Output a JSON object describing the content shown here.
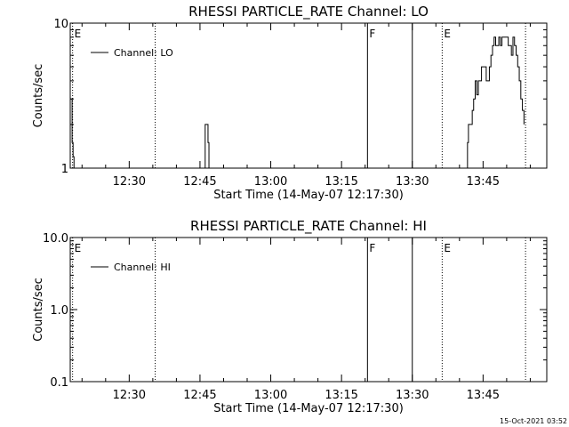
{
  "chart_data": [
    {
      "type": "line",
      "title": "RHESSI PARTICLE_RATE Channel: LO",
      "xlabel": "Start Time (14-May-07 12:17:30)",
      "ylabel": "Counts/sec",
      "yscale": "log",
      "ylim": [
        1,
        10
      ],
      "ytick_labels": [
        "1",
        "10"
      ],
      "xlim": [
        "12:17:30",
        "13:58:30"
      ],
      "xtick_labels": [
        "12:30",
        "12:45",
        "13:00",
        "13:15",
        "13:30",
        "13:45"
      ],
      "legend": {
        "label": "Channel: LO",
        "placement": "top-left"
      },
      "markers": [
        {
          "time": "12:18:00",
          "label": "E",
          "style": "dotted"
        },
        {
          "time": "12:35:30",
          "label": "",
          "style": "dotted"
        },
        {
          "time": "13:20:30",
          "label": "F",
          "style": "solid"
        },
        {
          "time": "13:30:00",
          "label": "",
          "style": "solid"
        },
        {
          "time": "13:36:20",
          "label": "E",
          "style": "dotted"
        },
        {
          "time": "13:54:00",
          "label": "",
          "style": "dotted"
        }
      ],
      "series": [
        {
          "name": "Channel: LO",
          "segments": [
            {
              "x": [
                "12:17:30",
                "12:17:42",
                "12:17:54",
                "12:18:06",
                "12:18:18"
              ],
              "y": [
                3,
                3,
                1.5,
                1.2,
                1
              ]
            },
            {
              "x": [
                "12:45:54",
                "12:46:06",
                "12:46:18",
                "12:46:30",
                "12:46:42",
                "12:46:54"
              ],
              "y": [
                1,
                2,
                2,
                2,
                1.5,
                1
              ]
            },
            {
              "x": [
                "13:41:30",
                "13:41:42",
                "13:41:54",
                "13:42:06",
                "13:42:18",
                "13:42:30",
                "13:42:42",
                "13:43:00",
                "13:43:20",
                "13:43:40",
                "13:44:00",
                "13:44:20",
                "13:44:40",
                "13:45:00",
                "13:45:20",
                "13:45:40",
                "13:46:00",
                "13:46:20",
                "13:46:40",
                "13:47:00",
                "13:47:20",
                "13:47:40",
                "13:48:00",
                "13:48:20",
                "13:48:40",
                "13:49:00",
                "13:49:20",
                "13:49:40",
                "13:50:00",
                "13:50:20",
                "13:50:40",
                "13:51:00",
                "13:51:20",
                "13:51:40",
                "13:52:00",
                "13:52:20",
                "13:52:40",
                "13:53:00",
                "13:53:20",
                "13:53:40"
              ],
              "y": [
                1,
                1.5,
                2,
                2,
                2,
                2,
                2.5,
                3,
                4,
                3.2,
                4,
                4,
                5,
                5,
                5,
                4,
                4,
                5,
                6,
                7,
                8,
                7,
                7,
                8,
                7,
                8,
                8,
                8,
                8,
                7,
                7,
                6,
                8,
                7,
                6,
                5,
                4,
                3,
                2.5,
                2
              ]
            }
          ]
        }
      ]
    },
    {
      "type": "line",
      "title": "RHESSI PARTICLE_RATE Channel: HI",
      "xlabel": "Start Time (14-May-07 12:17:30)",
      "ylabel": "Counts/sec",
      "yscale": "log",
      "ylim": [
        0.1,
        10
      ],
      "ytick_labels": [
        "0.1",
        "1.0",
        "10.0"
      ],
      "xlim": [
        "12:17:30",
        "13:58:30"
      ],
      "xtick_labels": [
        "12:30",
        "12:45",
        "13:00",
        "13:15",
        "13:30",
        "13:45"
      ],
      "legend": {
        "label": "Channel: HI",
        "placement": "top-left"
      },
      "markers": [
        {
          "time": "12:18:00",
          "label": "E",
          "style": "dotted"
        },
        {
          "time": "12:35:30",
          "label": "",
          "style": "dotted"
        },
        {
          "time": "13:20:30",
          "label": "F",
          "style": "solid"
        },
        {
          "time": "13:30:00",
          "label": "",
          "style": "solid"
        },
        {
          "time": "13:36:20",
          "label": "E",
          "style": "dotted"
        },
        {
          "time": "13:54:00",
          "label": "",
          "style": "dotted"
        }
      ],
      "series": [
        {
          "name": "Channel: HI",
          "segments": []
        }
      ]
    }
  ],
  "timestamp": "15-Oct-2021 03:52"
}
